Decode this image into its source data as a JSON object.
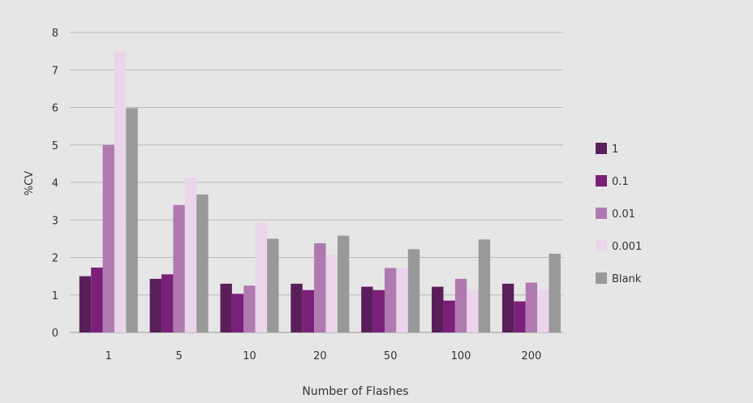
{
  "chart_data": {
    "type": "bar",
    "categories": [
      "1",
      "5",
      "10",
      "20",
      "50",
      "100",
      "200"
    ],
    "series": [
      {
        "name": "1",
        "color": "#5a1f5a",
        "values": [
          1.5,
          1.43,
          1.3,
          1.3,
          1.22,
          1.22,
          1.3
        ]
      },
      {
        "name": "0.1",
        "color": "#7b2079",
        "values": [
          1.73,
          1.55,
          1.03,
          1.13,
          1.13,
          0.85,
          0.83
        ]
      },
      {
        "name": "0.01",
        "color": "#b07ab0",
        "values": [
          5.0,
          3.4,
          1.25,
          2.38,
          1.72,
          1.43,
          1.33
        ]
      },
      {
        "name": "0.001",
        "color": "#ead5ea",
        "values": [
          7.5,
          4.13,
          2.93,
          2.07,
          1.72,
          1.13,
          1.13
        ]
      },
      {
        "name": "Blank",
        "color": "#999999",
        "values": [
          5.98,
          3.68,
          2.5,
          2.58,
          2.22,
          2.48,
          2.1
        ]
      }
    ],
    "title": "",
    "xlabel": "Number of Flashes",
    "ylabel": "%CV",
    "ylim": [
      0,
      8
    ],
    "yticks": [
      "0",
      "1",
      "2",
      "3",
      "4",
      "5",
      "6",
      "7",
      "8"
    ],
    "grid": true,
    "legend_position": "right"
  }
}
